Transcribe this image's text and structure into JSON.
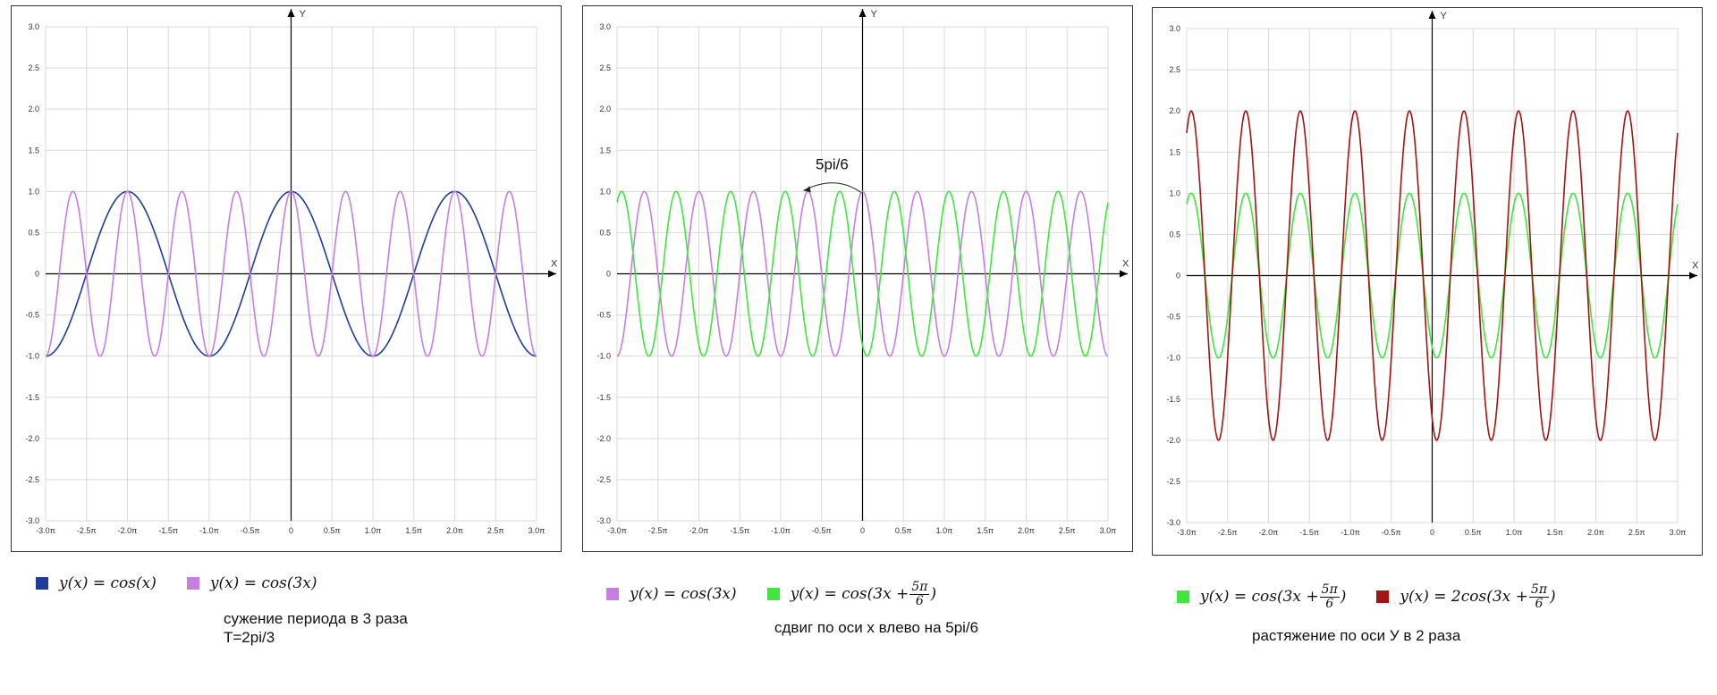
{
  "chart_data": [
    {
      "type": "line",
      "x_range": [
        -3,
        3
      ],
      "x_unit": "π",
      "ylim": [
        -3,
        3
      ],
      "x_ticks": [
        "-3.0π",
        "-2.5π",
        "-2.0π",
        "-1.5π",
        "-1.0π",
        "-0.5π",
        "0",
        "0.5π",
        "1.0π",
        "1.5π",
        "2.0π",
        "2.5π",
        "3.0π"
      ],
      "y_ticks": [
        "3.0",
        "2.5",
        "2.0",
        "1.5",
        "1.0",
        "0.5",
        "0",
        "-0.5",
        "-1.0",
        "-1.5",
        "-2.0",
        "-2.5",
        "-3.0"
      ],
      "xlabel": "X",
      "ylabel": "Y",
      "grid": true,
      "series": [
        {
          "name": "y(x) = cos(x)",
          "amplitude": 1,
          "frequency": 1,
          "phase": 0,
          "color": "#1f3c99"
        },
        {
          "name": "y(x) = cos(3x)",
          "amplitude": 1,
          "frequency": 3,
          "phase": 0,
          "color": "#c77ee0"
        }
      ],
      "annotation": "",
      "caption": "сужение периода в 3 раза\nT=2pi/3"
    },
    {
      "type": "line",
      "x_range": [
        -3,
        3
      ],
      "x_unit": "π",
      "ylim": [
        -3,
        3
      ],
      "x_ticks": [
        "-3.0π",
        "-2.5π",
        "-2.0π",
        "-1.5π",
        "-1.0π",
        "-0.5π",
        "0",
        "0.5π",
        "1.0π",
        "1.5π",
        "2.0π",
        "2.5π",
        "3.0π"
      ],
      "y_ticks": [
        "3.0",
        "2.5",
        "2.0",
        "1.5",
        "1.0",
        "0.5",
        "0",
        "-0.5",
        "-1.0",
        "-1.5",
        "-2.0",
        "-2.5",
        "-3.0"
      ],
      "xlabel": "X",
      "ylabel": "Y",
      "grid": true,
      "series": [
        {
          "name": "y(x) = cos(3x)",
          "amplitude": 1,
          "frequency": 3,
          "phase": 0,
          "color": "#c77ee0"
        },
        {
          "name": "y(x) = cos(3x + 5π/6)",
          "amplitude": 1,
          "frequency": 3,
          "phase": 2.618,
          "color": "#3ee63e"
        }
      ],
      "annotation": "5pi/6",
      "caption": "сдвиг по оси x влево на 5pi/6"
    },
    {
      "type": "line",
      "x_range": [
        -3,
        3
      ],
      "x_unit": "π",
      "ylim": [
        -3,
        3
      ],
      "x_ticks": [
        "-3.0π",
        "-2.5π",
        "-2.0π",
        "-1.5π",
        "-1.0π",
        "-0.5π",
        "0",
        "0.5π",
        "1.0π",
        "1.5π",
        "2.0π",
        "2.5π",
        "3.0π"
      ],
      "y_ticks": [
        "3.0",
        "2.5",
        "2.0",
        "1.5",
        "1.0",
        "0.5",
        "0",
        "-0.5",
        "-1.0",
        "-1.5",
        "-2.0",
        "-2.5",
        "-3.0"
      ],
      "xlabel": "X",
      "ylabel": "Y",
      "grid": true,
      "series": [
        {
          "name": "y(x) = cos(3x + 5π/6)",
          "amplitude": 1,
          "frequency": 3,
          "phase": 2.618,
          "color": "#3ee63e"
        },
        {
          "name": "y(x) = 2cos(3x + 5π/6)",
          "amplitude": 2,
          "frequency": 3,
          "phase": 2.618,
          "color": "#a31414"
        }
      ],
      "annotation": "",
      "caption": "растяжение по оси У в 2 раза"
    }
  ],
  "legends": [
    [
      {
        "prefix": "y(x) = cos(x)",
        "has_frac": false,
        "color": "#1f3c99"
      },
      {
        "prefix": "y(x) = cos(3x)",
        "has_frac": false,
        "color": "#c77ee0"
      }
    ],
    [
      {
        "prefix": "y(x) = cos(3x)",
        "has_frac": false,
        "color": "#c77ee0"
      },
      {
        "prefix": "y(x) = cos(3x +",
        "has_frac": true,
        "num": "5π",
        "den": "6",
        "suffix": ")",
        "color": "#3ee63e"
      }
    ],
    [
      {
        "prefix": "y(x) = cos(3x +",
        "has_frac": true,
        "num": "5π",
        "den": "6",
        "suffix": ")",
        "color": "#3ee63e"
      },
      {
        "prefix": "y(x) = 2cos(3x +",
        "has_frac": true,
        "num": "5π",
        "den": "6",
        "suffix": ")",
        "color": "#a31414"
      }
    ]
  ]
}
